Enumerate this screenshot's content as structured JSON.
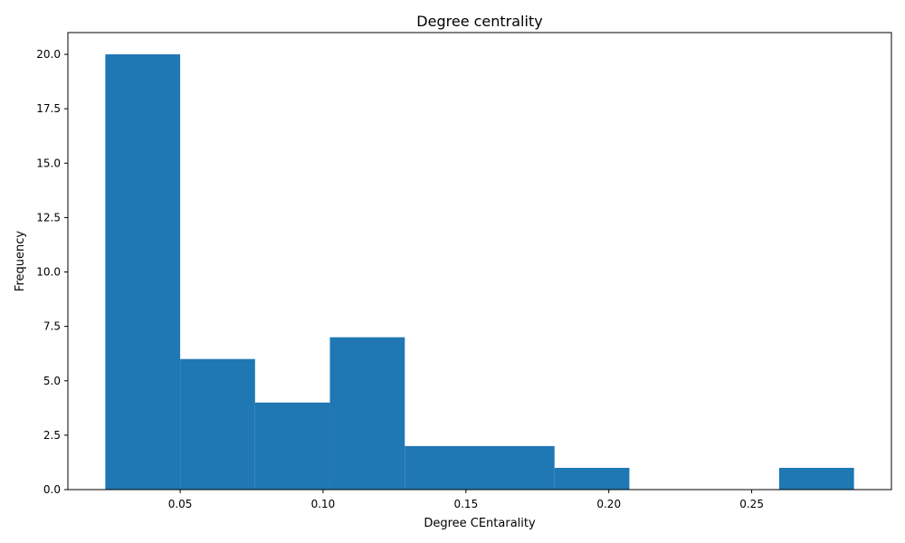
{
  "chart_data": {
    "type": "bar",
    "title": "Degree centrality",
    "xlabel": "Degree CEntarality",
    "ylabel": "Frequency",
    "bin_edges": [
      0.0238,
      0.05,
      0.0762,
      0.1024,
      0.1286,
      0.1548,
      0.181,
      0.2072,
      0.2334,
      0.2596,
      0.2858
    ],
    "values": [
      20,
      6,
      4,
      7,
      2,
      2,
      1,
      0,
      0,
      1
    ],
    "xlim": [
      0.0107,
      0.2989
    ],
    "ylim": [
      0,
      21
    ],
    "x_ticks": [
      0.05,
      0.1,
      0.15,
      0.2,
      0.25
    ],
    "x_tick_labels": [
      "0.05",
      "0.10",
      "0.15",
      "0.20",
      "0.25"
    ],
    "y_ticks": [
      0,
      2.5,
      5,
      7.5,
      10,
      12.5,
      15,
      17.5,
      20
    ],
    "y_tick_labels": [
      "0.0",
      "2.5",
      "5.0",
      "7.5",
      "10.0",
      "12.5",
      "15.0",
      "17.5",
      "20.0"
    ],
    "bar_color": "#1f77b4",
    "grid": false
  }
}
